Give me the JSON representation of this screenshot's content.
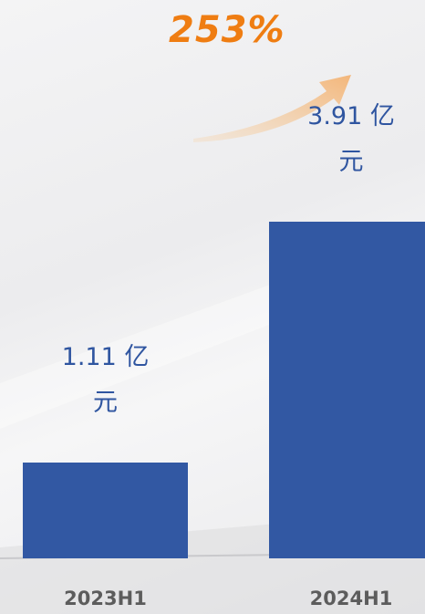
{
  "chart_data": {
    "type": "bar",
    "categories": [
      "2023H1",
      "2024H1"
    ],
    "values": [
      1.11,
      3.91
    ],
    "value_labels": [
      "1.11 亿元",
      "3.91 亿元"
    ],
    "color": "#3258a3",
    "annotation": "253%"
  }
}
